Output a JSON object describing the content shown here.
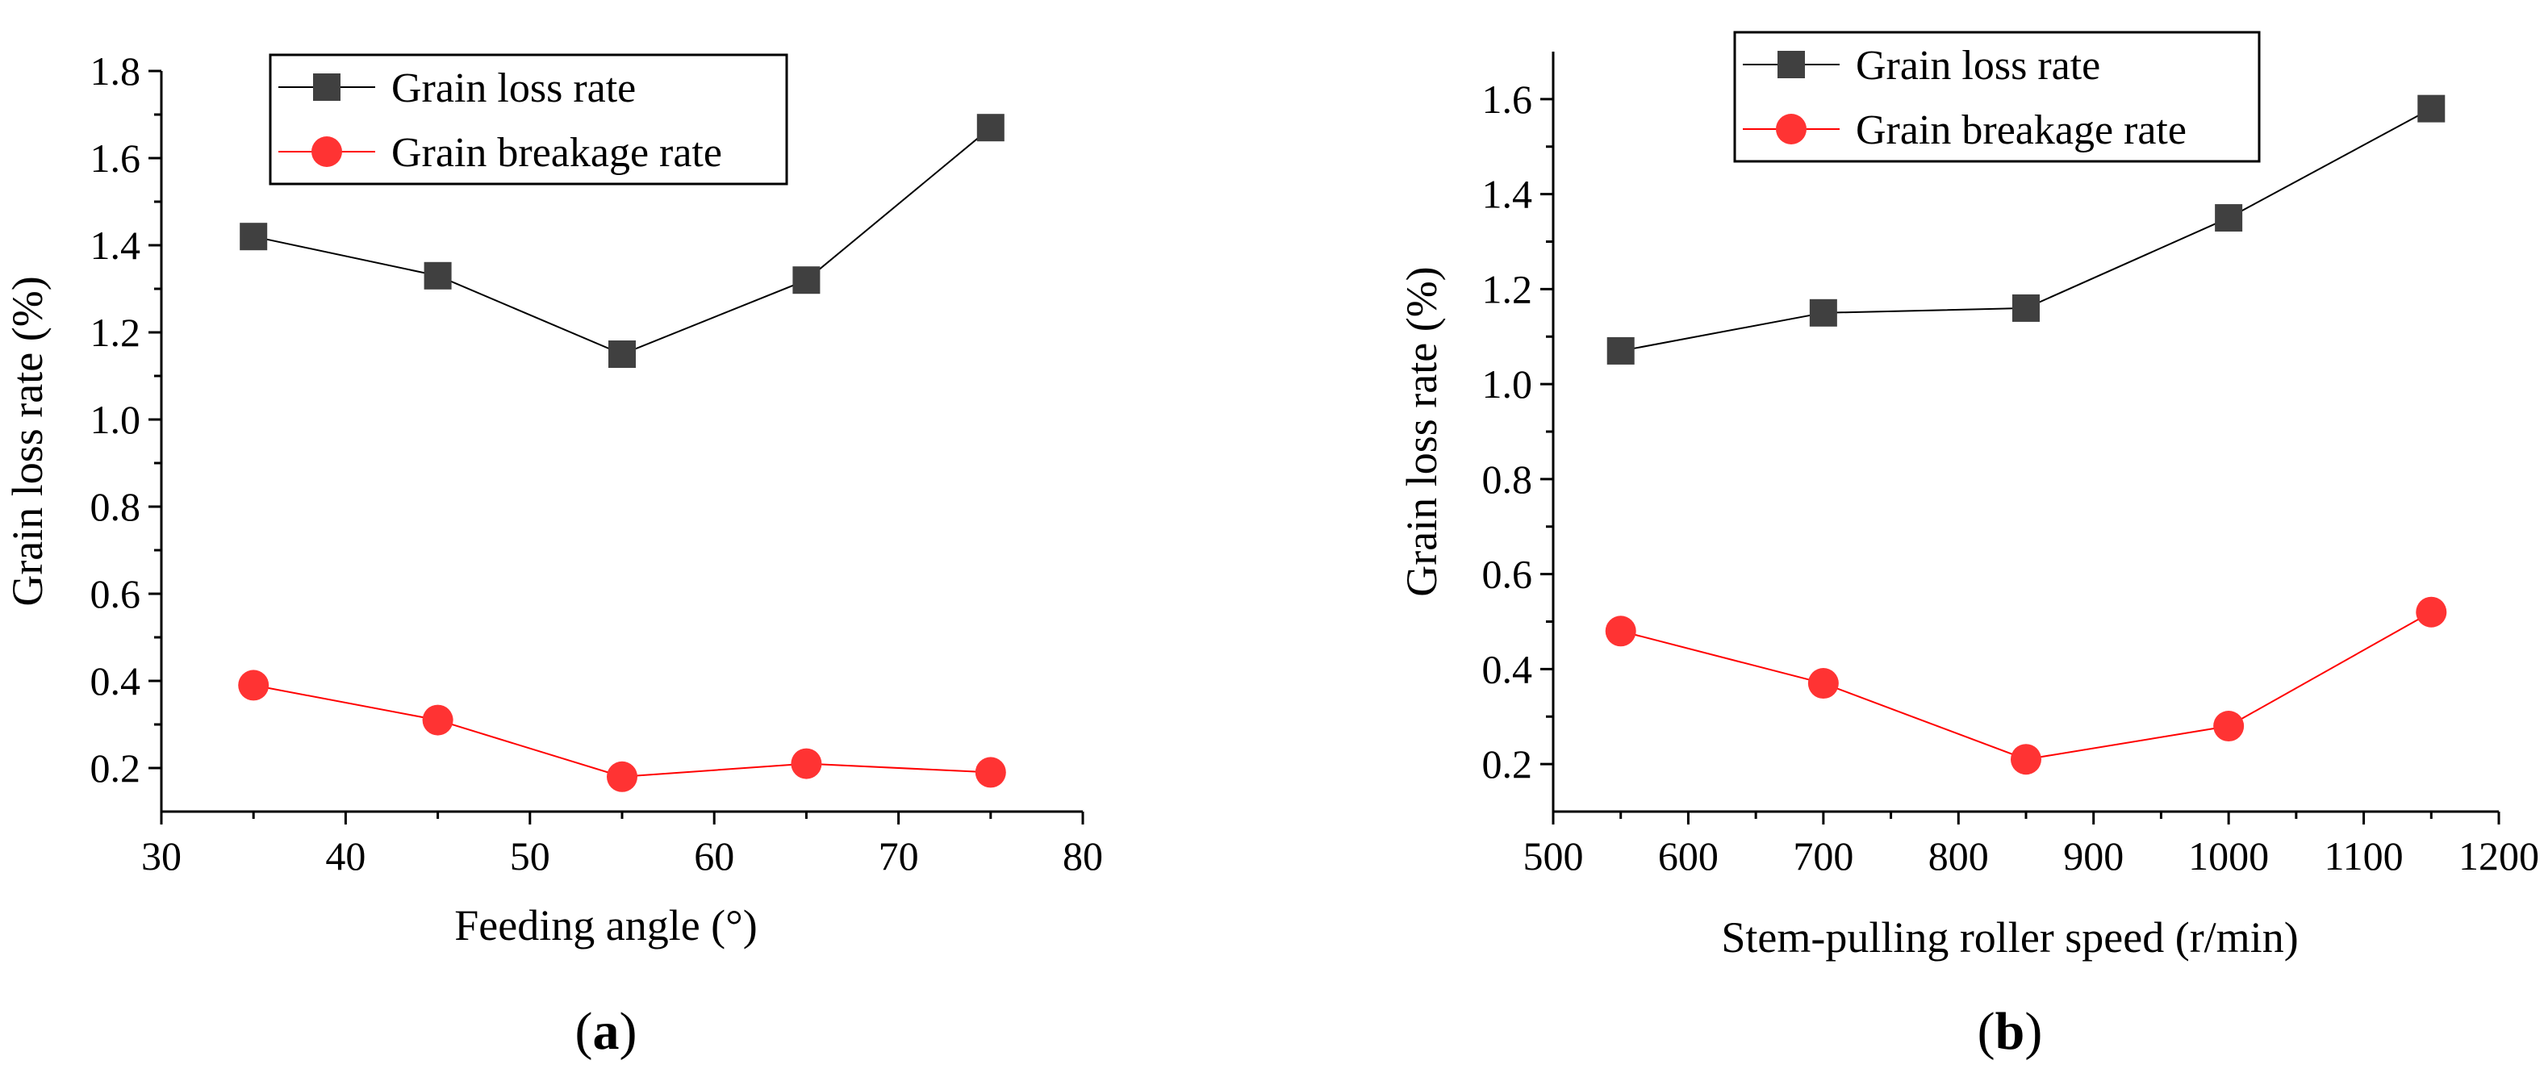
{
  "chart_data": [
    {
      "type": "line",
      "panel_label": "a",
      "xlabel": "Feeding angle (°)",
      "ylabel": "Grain loss rate (%)",
      "xlim": [
        30,
        80
      ],
      "ylim": [
        0.1,
        1.8
      ],
      "xticks": [
        30,
        40,
        50,
        60,
        70,
        80
      ],
      "xtick_labels": [
        "30",
        "40",
        "50",
        "60",
        "70",
        "80"
      ],
      "yticks": [
        0.2,
        0.4,
        0.6,
        0.8,
        1.0,
        1.2,
        1.4,
        1.6,
        1.8
      ],
      "ytick_labels": [
        "0.2",
        "0.4",
        "0.6",
        "0.8",
        "1.0",
        "1.2",
        "1.4",
        "1.6",
        "1.8"
      ],
      "x": [
        35,
        45,
        55,
        65,
        75
      ],
      "series": [
        {
          "name": "Grain loss rate",
          "values": [
            1.42,
            1.33,
            1.15,
            1.32,
            1.67
          ],
          "color": "#000000",
          "marker": "square",
          "marker_color": "#404040"
        },
        {
          "name": "Grain breakage rate",
          "values": [
            0.39,
            0.31,
            0.18,
            0.21,
            0.19
          ],
          "color": "#ff0000",
          "marker": "circle",
          "marker_color": "#ff3333"
        }
      ],
      "legend": "top-center",
      "grid": false
    },
    {
      "type": "line",
      "panel_label": "b",
      "xlabel": "Stem-pulling roller speed (r/min)",
      "ylabel": "Grain loss rate (%)",
      "xlim": [
        500,
        1200
      ],
      "ylim": [
        0.1,
        1.7
      ],
      "xticks": [
        500,
        600,
        700,
        800,
        900,
        1000,
        1100,
        1200
      ],
      "xtick_labels": [
        "500",
        "600",
        "700",
        "800",
        "900",
        "1000",
        "1100",
        "1200"
      ],
      "yticks": [
        0.2,
        0.4,
        0.6,
        0.8,
        1.0,
        1.2,
        1.4,
        1.6
      ],
      "ytick_labels": [
        "0.2",
        "0.4",
        "0.6",
        "0.8",
        "1.0",
        "1.2",
        "1.4",
        "1.6"
      ],
      "x": [
        550,
        700,
        850,
        1000,
        1150
      ],
      "series": [
        {
          "name": "Grain loss rate",
          "values": [
            1.07,
            1.15,
            1.16,
            1.35,
            1.58
          ],
          "color": "#000000",
          "marker": "square",
          "marker_color": "#404040"
        },
        {
          "name": "Grain breakage rate",
          "values": [
            0.48,
            0.37,
            0.21,
            0.28,
            0.52
          ],
          "color": "#ff0000",
          "marker": "circle",
          "marker_color": "#ff3333"
        }
      ],
      "legend": "top-center",
      "grid": false
    }
  ]
}
